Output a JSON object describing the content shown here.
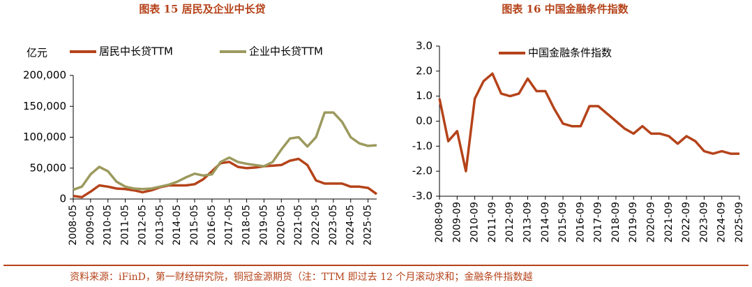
{
  "chart_data": [
    {
      "type": "line",
      "title": "图表 15  居民及企业中长贷",
      "y_label": "亿元",
      "categories": [
        "2008-05",
        null,
        "2009-05",
        null,
        "2010-05",
        null,
        "2011-05",
        null,
        "2012-05",
        null,
        "2013-05",
        null,
        "2014-05",
        null,
        "2015-05",
        null,
        "2016-05",
        null,
        "2017-05",
        null,
        "2018-05",
        null,
        "2019-05",
        null,
        "2020-05",
        null,
        "2021-05",
        null,
        "2022-05",
        null,
        "2023-05",
        null,
        "2024-05",
        null,
        "2025-05",
        null
      ],
      "series": [
        {
          "name": "居民中长贷TTM",
          "color": "#b5431a",
          "values": [
            5000,
            3000,
            12000,
            22000,
            20000,
            17000,
            16000,
            14000,
            11000,
            14000,
            19000,
            22000,
            22000,
            22000,
            24000,
            32000,
            45000,
            58000,
            60000,
            52000,
            50000,
            51000,
            53000,
            54000,
            55000,
            62000,
            65000,
            55000,
            30000,
            25000,
            25000,
            25000,
            20000,
            20000,
            18000,
            8000
          ]
        },
        {
          "name": "企业中长贷TTM",
          "color": "#9c9a5e",
          "values": [
            15000,
            20000,
            40000,
            52000,
            45000,
            28000,
            20000,
            17000,
            16000,
            17000,
            20000,
            23000,
            28000,
            35000,
            41000,
            38000,
            40000,
            60000,
            67000,
            60000,
            57000,
            55000,
            53000,
            60000,
            80000,
            98000,
            100000,
            85000,
            100000,
            140000,
            140000,
            125000,
            100000,
            90000,
            86000,
            87000
          ]
        }
      ],
      "ylim": [
        0,
        200000
      ],
      "yticks": [
        0,
        {
          "value": 50000,
          "label": "50,000"
        },
        {
          "value": 100000,
          "label": "100,000"
        },
        {
          "value": 150000,
          "label": "150,000"
        },
        {
          "value": 200000,
          "label": "200,000"
        }
      ]
    },
    {
      "type": "line",
      "title": "图表 16    中国金融条件指数",
      "categories": [
        "2008-09",
        null,
        "2009-09",
        null,
        "2010-09",
        null,
        "2011-09",
        null,
        "2012-09",
        null,
        "2013-09",
        null,
        "2014-09",
        null,
        "2015-09",
        null,
        "2016-09",
        null,
        "2017-09",
        null,
        "2018-09",
        null,
        "2019-09",
        null,
        "2020-09",
        null,
        "2021-09",
        null,
        "2022-09",
        null,
        "2023-09",
        null,
        "2024-09",
        null,
        "2025-09"
      ],
      "series": [
        {
          "name": "中国金融条件指数",
          "color": "#b5431a",
          "values": [
            0.9,
            -0.8,
            -0.4,
            -2.0,
            0.9,
            1.6,
            1.9,
            1.1,
            1.0,
            1.1,
            1.7,
            1.2,
            1.2,
            0.5,
            -0.1,
            -0.2,
            -0.2,
            0.6,
            0.6,
            0.3,
            0.0,
            -0.3,
            -0.5,
            -0.2,
            -0.5,
            -0.5,
            -0.6,
            -0.9,
            -0.6,
            -0.8,
            -1.2,
            -1.3,
            -1.2,
            -1.3,
            -1.3
          ]
        }
      ],
      "ylim": [
        -3,
        3
      ],
      "yticks": [
        {
          "value": -3,
          "label": "-3.0"
        },
        {
          "value": -2,
          "label": "-2.0"
        },
        {
          "value": -1,
          "label": "-1.0"
        },
        {
          "value": 0,
          "label": "0.0"
        },
        {
          "value": 1,
          "label": "1.0"
        },
        {
          "value": 2,
          "label": "2.0"
        },
        {
          "value": 3,
          "label": "3.0"
        }
      ]
    }
  ],
  "footer": {
    "source": "资料来源：iFinD，第一财经研究院，铜冠金源期货（注：TTM 即过去 12 个月滚动求和；金融条件指数越"
  }
}
